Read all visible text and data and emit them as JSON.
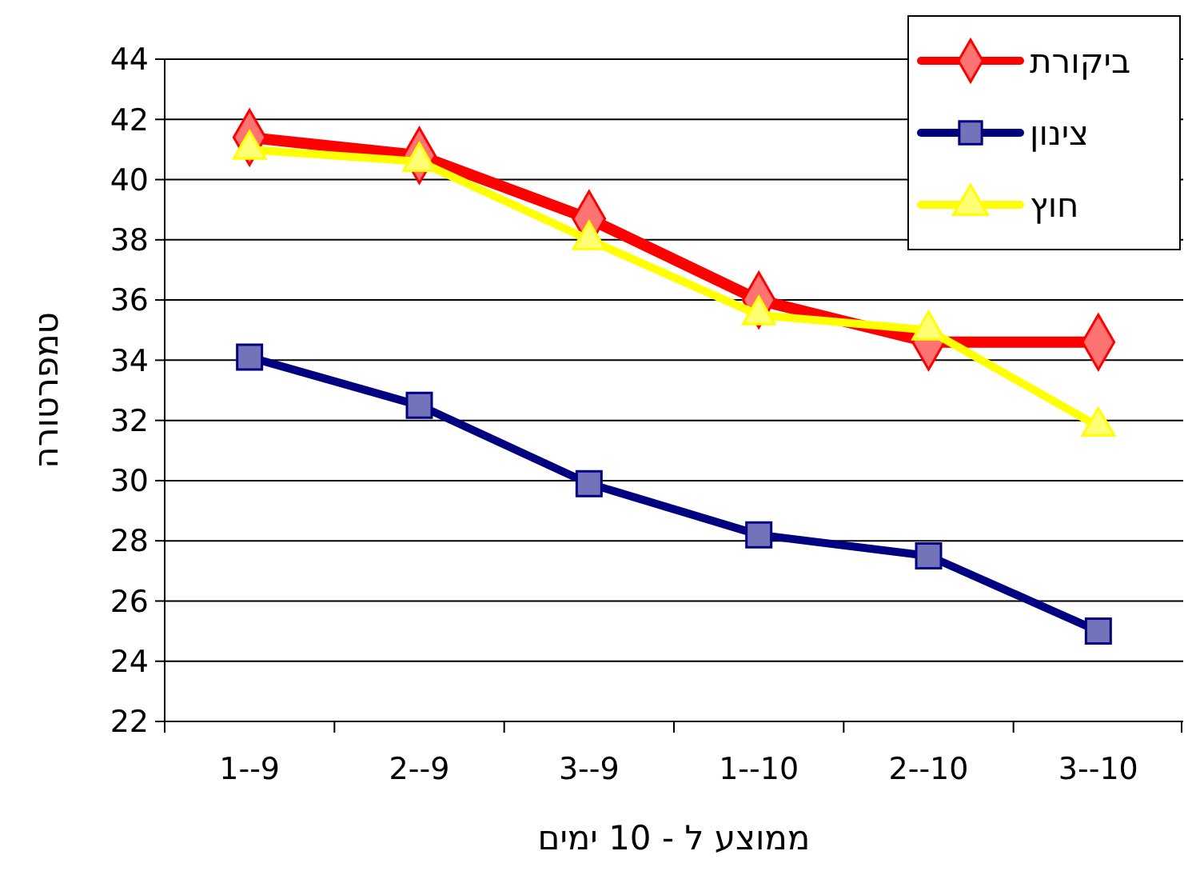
{
  "chart_data": {
    "type": "line",
    "xlabel": "ממוצע ל - 10 ימים",
    "ylabel": "טמפרטורה",
    "categories": [
      "1--9",
      "2--9",
      "3--9",
      "1--10",
      "2--10",
      "3--10"
    ],
    "series": [
      {
        "name": "ביקורת",
        "color": "#ff0000",
        "marker": "diamond",
        "values": [
          41.4,
          40.8,
          38.7,
          36.0,
          34.6,
          34.6
        ]
      },
      {
        "name": "צינון",
        "color": "#000080",
        "marker": "square",
        "values": [
          34.1,
          32.5,
          29.9,
          28.2,
          27.5,
          25.0
        ]
      },
      {
        "name": "חוץ",
        "color": "#ffff00",
        "marker": "triangle",
        "values": [
          41.0,
          40.6,
          38.0,
          35.5,
          35.0,
          31.8
        ]
      }
    ],
    "ylim": [
      22,
      44
    ],
    "yticks": [
      22,
      24,
      26,
      28,
      30,
      32,
      34,
      36,
      38,
      40,
      42,
      44
    ],
    "grid": "y",
    "legend": "top right"
  }
}
